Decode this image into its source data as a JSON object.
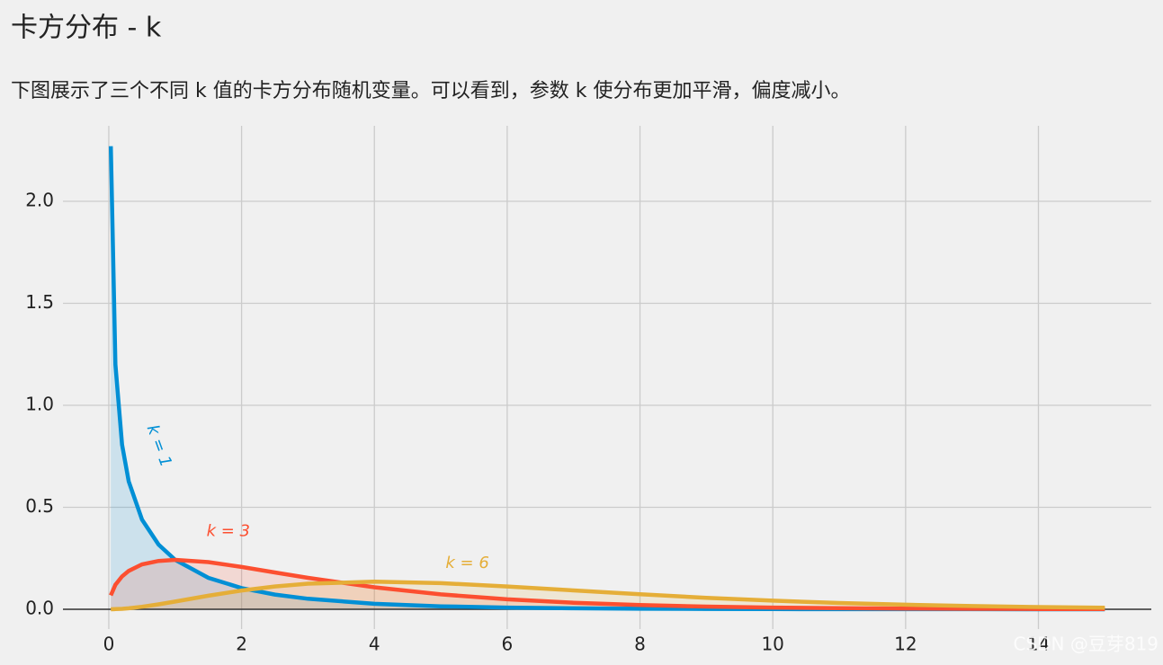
{
  "chart_data": {
    "type": "line",
    "title": "卡方分布 - k",
    "subtitle": "下图展示了三个不同 k 值的卡方分布随机变量。可以看到，参数 k 使分布更加平滑，偏度减小。",
    "x": [
      0.03,
      0.1,
      0.2,
      0.3,
      0.5,
      0.75,
      1,
      1.5,
      2,
      2.5,
      3,
      4,
      5,
      6,
      7,
      8,
      9,
      10,
      11,
      12,
      13,
      14,
      15
    ],
    "series": [
      {
        "name": "k = 1",
        "color": "#008fd5",
        "values": [
          2.27,
          1.2,
          0.807,
          0.627,
          0.439,
          0.317,
          0.242,
          0.154,
          0.1038,
          0.0723,
          0.0514,
          0.027,
          0.0146,
          0.0081,
          0.0046,
          0.0026,
          0.0015,
          0.00085,
          0.0005,
          0.0003,
          0.0002,
          0.0001,
          0.0001
        ]
      },
      {
        "name": "k = 3",
        "color": "#fc4f30",
        "values": [
          0.068,
          0.12,
          0.161,
          0.188,
          0.22,
          0.237,
          0.242,
          0.231,
          0.2076,
          0.1807,
          0.1542,
          0.108,
          0.0732,
          0.0487,
          0.0319,
          0.0207,
          0.0133,
          0.0085,
          0.0054,
          0.0034,
          0.0022,
          0.0014,
          0.0009
        ]
      },
      {
        "name": "k = 6",
        "color": "#e5ae38",
        "values": [
          0,
          0.0006,
          0.0023,
          0.0048,
          0.0122,
          0.0242,
          0.0379,
          0.0664,
          0.092,
          0.1119,
          0.1255,
          0.1353,
          0.1283,
          0.112,
          0.0925,
          0.0733,
          0.0562,
          0.0421,
          0.0309,
          0.0223,
          0.0159,
          0.0111,
          0.0077
        ]
      }
    ],
    "xlim": [
      -0.69,
      15.7
    ],
    "ylim": [
      -0.097,
      2.37
    ],
    "xticks": [
      0,
      2,
      4,
      6,
      8,
      10,
      12,
      14
    ],
    "yticks": [
      {
        "value": 0,
        "label": "0.0"
      },
      {
        "value": 0.5,
        "label": "0.5"
      },
      {
        "value": 1,
        "label": "1.0"
      },
      {
        "value": 1.5,
        "label": "1.5"
      },
      {
        "value": 2,
        "label": "2.0"
      }
    ],
    "grid": true,
    "watermark": "CSDN @豆芽819"
  }
}
